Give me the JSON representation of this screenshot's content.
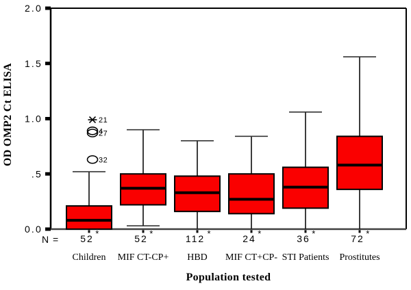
{
  "chart_data": {
    "type": "boxplot",
    "title": "",
    "ylabel": "OD OMP2 Ct ELISA",
    "xlabel": "Population tested",
    "n_row_label": "N =",
    "ylim": [
      0,
      2.0
    ],
    "grid": false,
    "box_fill": "#FA0000",
    "yticks": [
      {
        "value": 0.0,
        "label": "0.0"
      },
      {
        "value": 0.5,
        "label": ".5"
      },
      {
        "value": 1.0,
        "label": "1.0"
      },
      {
        "value": 1.5,
        "label": "1.5"
      },
      {
        "value": 2.0,
        "label": "2.0"
      }
    ],
    "categories": [
      "Children",
      "MIF CT-CP+",
      "HBD",
      "MIF CT+CP-",
      "STI Patients",
      "Prostitutes"
    ],
    "groups": [
      {
        "label": "Children",
        "n": "52",
        "n_flag": "*",
        "whisker_low": 0.0,
        "q1": 0.0,
        "median": 0.08,
        "q3": 0.21,
        "whisker_high": 0.52,
        "outliers": [
          {
            "label": "32",
            "value": 0.63,
            "marker": "circle"
          },
          {
            "label": "27",
            "value": 0.87,
            "marker": "circle"
          },
          {
            "label": "4",
            "value": 0.89,
            "marker": "circle"
          },
          {
            "label": "21",
            "value": 0.99,
            "marker": "asterisk"
          }
        ]
      },
      {
        "label": "MIF CT-CP+",
        "n": "52",
        "n_flag": "*",
        "whisker_low": 0.03,
        "q1": 0.22,
        "median": 0.37,
        "q3": 0.5,
        "whisker_high": 0.9,
        "outliers": []
      },
      {
        "label": "HBD",
        "n": "112",
        "n_flag": "*",
        "whisker_low": 0.0,
        "q1": 0.16,
        "median": 0.33,
        "q3": 0.48,
        "whisker_high": 0.8,
        "outliers": []
      },
      {
        "label": "MIF CT+CP-",
        "n": "24",
        "n_flag": "*",
        "whisker_low": 0.0,
        "q1": 0.14,
        "median": 0.27,
        "q3": 0.5,
        "whisker_high": 0.84,
        "outliers": []
      },
      {
        "label": "STI Patients",
        "n": "36",
        "n_flag": "*",
        "whisker_low": 0.0,
        "q1": 0.19,
        "median": 0.38,
        "q3": 0.56,
        "whisker_high": 1.06,
        "outliers": []
      },
      {
        "label": "Prostitutes",
        "n": "72",
        "n_flag": "*",
        "whisker_low": 0.0,
        "q1": 0.36,
        "median": 0.58,
        "q3": 0.84,
        "whisker_high": 1.56,
        "outliers": []
      }
    ]
  }
}
